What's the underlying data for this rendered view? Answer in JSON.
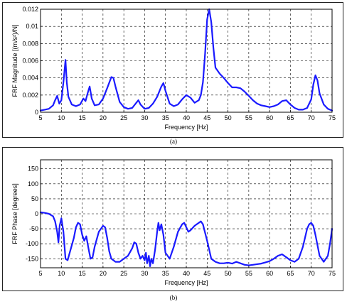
{
  "charts": [
    {
      "caption": "(a)",
      "chart_data": {
        "type": "line",
        "xlabel": "Frequency [Hz]",
        "ylabel": "FRF Magnitude [(m/s²)/N]",
        "xlim": [
          5,
          75
        ],
        "ylim": [
          0,
          0.012
        ],
        "x_ticks": [
          5,
          10,
          15,
          20,
          25,
          30,
          35,
          40,
          45,
          50,
          55,
          60,
          65,
          70,
          75
        ],
        "y_ticks": [
          0,
          0.002,
          0.004,
          0.006,
          0.008,
          0.01,
          0.012
        ],
        "y_tick_labels": [
          "0",
          "0.002",
          "0.004",
          "0.006",
          "0.008",
          "0.01",
          "0.012"
        ],
        "grid": true,
        "line_color": "#1a1aff",
        "series": [
          {
            "x": [
              5,
              6,
              7,
              8,
              8.5,
              9,
              9.5,
              10,
              10.5,
              11,
              11.3,
              11.7,
              12.5,
              13.5,
              14.5,
              15.3,
              15.8,
              16.3,
              16.8,
              17.3,
              18,
              19,
              20,
              21,
              22,
              22.5,
              23,
              24,
              25,
              26,
              27,
              28,
              28.5,
              29,
              30,
              31,
              32,
              33,
              34,
              34.5,
              35,
              36,
              37,
              38,
              39,
              40,
              41,
              42,
              43,
              43.5,
              44,
              44.5,
              45,
              45.5,
              46,
              46.5,
              47,
              48,
              49,
              50,
              51,
              52,
              53,
              54,
              55,
              56,
              57,
              58,
              59,
              60,
              61,
              62,
              63,
              64,
              65,
              66,
              67,
              68,
              69,
              70,
              70.5,
              71,
              71.5,
              72,
              73,
              74,
              75
            ],
            "y": [
              0.0002,
              0.0003,
              0.0004,
              0.0008,
              0.0014,
              0.0019,
              0.001,
              0.0014,
              0.0035,
              0.0061,
              0.0035,
              0.0018,
              0.0009,
              0.0007,
              0.0009,
              0.0016,
              0.0013,
              0.0022,
              0.003,
              0.0016,
              0.0008,
              0.0009,
              0.0016,
              0.0028,
              0.0041,
              0.004,
              0.003,
              0.0012,
              0.0006,
              0.0004,
              0.0005,
              0.0011,
              0.0014,
              0.0009,
              0.0004,
              0.0005,
              0.001,
              0.0018,
              0.003,
              0.0034,
              0.0025,
              0.001,
              0.0007,
              0.0009,
              0.0015,
              0.002,
              0.0017,
              0.0011,
              0.0014,
              0.002,
              0.0035,
              0.0068,
              0.0108,
              0.0124,
              0.0105,
              0.0075,
              0.0052,
              0.0045,
              0.004,
              0.0034,
              0.0029,
              0.0029,
              0.0028,
              0.0024,
              0.0019,
              0.0014,
              0.001,
              0.0008,
              0.0007,
              0.0006,
              0.0007,
              0.0009,
              0.0013,
              0.0014,
              0.0009,
              0.0005,
              0.0003,
              0.0003,
              0.0005,
              0.0015,
              0.0032,
              0.0043,
              0.0037,
              0.0022,
              0.0009,
              0.0004,
              0.0002
            ]
          }
        ]
      }
    },
    {
      "caption": "(b)",
      "chart_data": {
        "type": "line",
        "xlabel": "Frequency [Hz]",
        "ylabel": "FRF Phase [degrees]",
        "xlim": [
          5,
          75
        ],
        "ylim": [
          -180,
          180
        ],
        "x_ticks": [
          5,
          10,
          15,
          20,
          25,
          30,
          35,
          40,
          45,
          50,
          55,
          60,
          65,
          70,
          75
        ],
        "y_ticks": [
          -150,
          -100,
          -50,
          0,
          50,
          100,
          150
        ],
        "y_tick_labels": [
          "-150",
          "-100",
          "-50",
          "0",
          "50",
          "100",
          "150"
        ],
        "grid": true,
        "line_color": "#1a1aff",
        "series": [
          {
            "x": [
              5,
              6,
              7,
              8,
              8.5,
              9,
              9.3,
              9.6,
              10,
              10.5,
              11,
              11.5,
              12,
              13,
              13.5,
              14,
              14.5,
              15,
              15.5,
              16,
              16.5,
              17,
              17.5,
              18,
              19,
              20,
              20.5,
              21,
              21.5,
              22,
              23,
              24,
              25,
              26,
              27,
              27.5,
              28,
              28.5,
              29,
              29.5,
              30,
              30.3,
              30.6,
              31,
              31.3,
              31.6,
              32,
              32.5,
              33,
              33.3,
              33.6,
              34,
              34.5,
              35,
              36,
              37,
              38,
              39,
              39.5,
              40,
              40.5,
              41,
              42,
              43,
              43.5,
              44,
              45,
              46,
              47,
              48,
              49,
              50,
              51,
              52,
              53,
              54,
              55,
              56,
              57,
              58,
              59,
              60,
              61,
              62,
              63,
              64,
              65,
              66,
              67,
              68,
              69,
              69.5,
              70,
              70.5,
              71,
              72,
              73,
              74,
              74.5,
              75
            ],
            "y": [
              5,
              3,
              0,
              -8,
              -25,
              -60,
              -95,
              -40,
              -15,
              -60,
              -150,
              -155,
              -130,
              -80,
              -45,
              -30,
              -35,
              -70,
              -90,
              -75,
              -115,
              -150,
              -145,
              -110,
              -60,
              -40,
              -45,
              -80,
              -125,
              -150,
              -160,
              -160,
              -150,
              -140,
              -115,
              -95,
              -100,
              -130,
              -150,
              -140,
              -155,
              -130,
              -165,
              -140,
              -175,
              -150,
              -165,
              -120,
              -60,
              -30,
              -55,
              -35,
              -70,
              -130,
              -150,
              -110,
              -60,
              -35,
              -30,
              -45,
              -60,
              -55,
              -40,
              -30,
              -25,
              -35,
              -90,
              -150,
              -160,
              -165,
              -165,
              -163,
              -166,
              -160,
              -165,
              -170,
              -172,
              -170,
              -168,
              -166,
              -162,
              -158,
              -150,
              -140,
              -135,
              -145,
              -155,
              -160,
              -150,
              -110,
              -50,
              -35,
              -30,
              -40,
              -70,
              -140,
              -160,
              -140,
              -100,
              -50
            ]
          }
        ]
      }
    }
  ]
}
